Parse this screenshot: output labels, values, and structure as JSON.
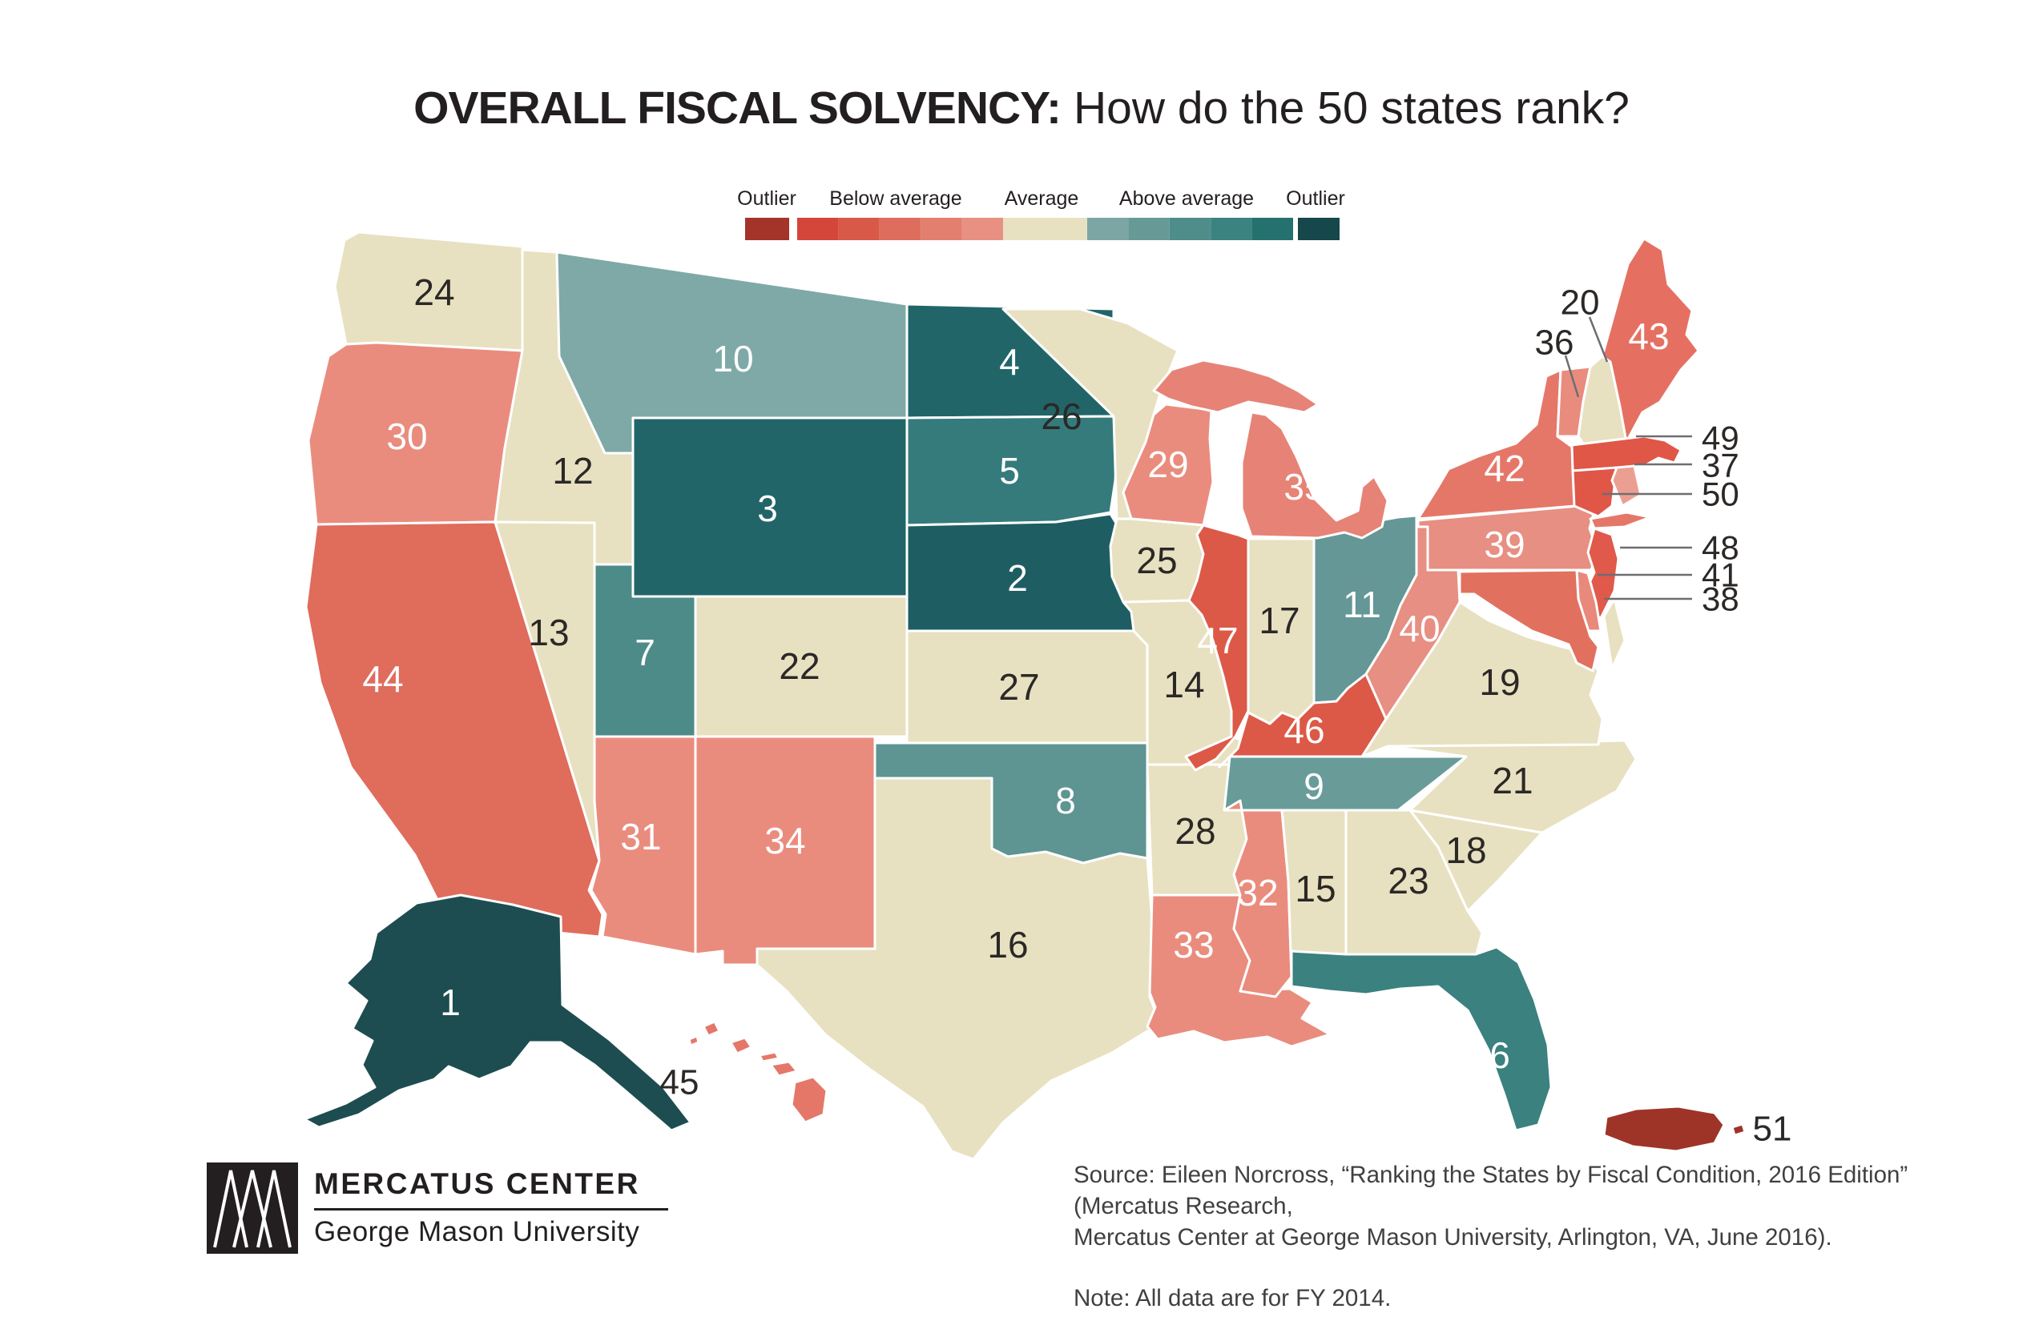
{
  "title": {
    "emphasis": "OVERALL FISCAL SOLVENCY:",
    "rest": "How do the 50 states rank?"
  },
  "legend": {
    "labels": [
      "Outlier",
      "Below average",
      "Average",
      "Above average",
      "Outlier"
    ],
    "outlier_low_color": "#a43429",
    "below_average_colors": [
      "#d5463a",
      "#d95948",
      "#de6d5d",
      "#e27f6f",
      "#e89182"
    ],
    "average_color": "#e7e1c1",
    "above_average_colors": [
      "#7ca6a3",
      "#679a97",
      "#4e8d8a",
      "#3b8380",
      "#257170"
    ],
    "outlier_high_color": "#16474b"
  },
  "map": {
    "states": [
      {
        "abbr": "AK",
        "name": "Alaska",
        "rank": 1,
        "fill": "#1d4d50",
        "label_color": "#ffffff"
      },
      {
        "abbr": "NE",
        "name": "Nebraska",
        "rank": 2,
        "fill": "#1e5e62",
        "label_color": "#ffffff"
      },
      {
        "abbr": "WY",
        "name": "Wyoming",
        "rank": 3,
        "fill": "#216569",
        "label_color": "#ffffff"
      },
      {
        "abbr": "ND",
        "name": "North Dakota",
        "rank": 4,
        "fill": "#216569",
        "label_color": "#ffffff"
      },
      {
        "abbr": "SD",
        "name": "South Dakota",
        "rank": 5,
        "fill": "#357b7c",
        "label_color": "#ffffff"
      },
      {
        "abbr": "FL",
        "name": "Florida",
        "rank": 6,
        "fill": "#3a817f",
        "label_color": "#ffffff"
      },
      {
        "abbr": "UT",
        "name": "Utah",
        "rank": 7,
        "fill": "#4d8b89",
        "label_color": "#ffffff"
      },
      {
        "abbr": "OK",
        "name": "Oklahoma",
        "rank": 8,
        "fill": "#5e9492",
        "label_color": "#ffffff"
      },
      {
        "abbr": "TN",
        "name": "Tennessee",
        "rank": 9,
        "fill": "#699c99",
        "label_color": "#ffffff"
      },
      {
        "abbr": "MT",
        "name": "Montana",
        "rank": 10,
        "fill": "#7ea9a7",
        "label_color": "#ffffff"
      },
      {
        "abbr": "OH",
        "name": "Ohio",
        "rank": 11,
        "fill": "#649795",
        "label_color": "#ffffff"
      },
      {
        "abbr": "ID",
        "name": "Idaho",
        "rank": 12,
        "fill": "#e7e1c1",
        "label_color": "#2b2826"
      },
      {
        "abbr": "NV",
        "name": "Nevada",
        "rank": 13,
        "fill": "#e7e1c1",
        "label_color": "#2b2826"
      },
      {
        "abbr": "MO",
        "name": "Missouri",
        "rank": 14,
        "fill": "#e7e1c1",
        "label_color": "#2b2826"
      },
      {
        "abbr": "AL",
        "name": "Alabama",
        "rank": 15,
        "fill": "#e7e1c1",
        "label_color": "#2b2826"
      },
      {
        "abbr": "TX",
        "name": "Texas",
        "rank": 16,
        "fill": "#e7e1c1",
        "label_color": "#2b2826"
      },
      {
        "abbr": "IN",
        "name": "Indiana",
        "rank": 17,
        "fill": "#e7e1c1",
        "label_color": "#2b2826"
      },
      {
        "abbr": "SC",
        "name": "South Carolina",
        "rank": 18,
        "fill": "#e7e1c1",
        "label_color": "#2b2826"
      },
      {
        "abbr": "VA",
        "name": "Virginia",
        "rank": 19,
        "fill": "#e7e1c1",
        "label_color": "#2b2826"
      },
      {
        "abbr": "NH",
        "name": "New Hampshire",
        "rank": 20,
        "fill": "#e7e1c1",
        "label_color": "#2b2826"
      },
      {
        "abbr": "NC",
        "name": "North Carolina",
        "rank": 21,
        "fill": "#e7e1c1",
        "label_color": "#2b2826"
      },
      {
        "abbr": "CO",
        "name": "Colorado",
        "rank": 22,
        "fill": "#e7e1c1",
        "label_color": "#2b2826"
      },
      {
        "abbr": "GA",
        "name": "Georgia",
        "rank": 23,
        "fill": "#e7e1c1",
        "label_color": "#2b2826"
      },
      {
        "abbr": "WA",
        "name": "Washington",
        "rank": 24,
        "fill": "#e7e1c1",
        "label_color": "#2b2826"
      },
      {
        "abbr": "IA",
        "name": "Iowa",
        "rank": 25,
        "fill": "#e7e1c1",
        "label_color": "#2b2826"
      },
      {
        "abbr": "MN",
        "name": "Minnesota",
        "rank": 26,
        "fill": "#e7e1c1",
        "label_color": "#2b2826"
      },
      {
        "abbr": "KS",
        "name": "Kansas",
        "rank": 27,
        "fill": "#e7e1c1",
        "label_color": "#2b2826"
      },
      {
        "abbr": "AR",
        "name": "Arkansas",
        "rank": 28,
        "fill": "#e7e1c1",
        "label_color": "#2b2826"
      },
      {
        "abbr": "WI",
        "name": "Wisconsin",
        "rank": 29,
        "fill": "#e98c7e",
        "label_color": "#ffffff"
      },
      {
        "abbr": "OR",
        "name": "Oregon",
        "rank": 30,
        "fill": "#e98c7e",
        "label_color": "#ffffff"
      },
      {
        "abbr": "AZ",
        "name": "Arizona",
        "rank": 31,
        "fill": "#e98c7e",
        "label_color": "#ffffff"
      },
      {
        "abbr": "MS",
        "name": "Mississippi",
        "rank": 32,
        "fill": "#e98c7e",
        "label_color": "#ffffff"
      },
      {
        "abbr": "LA",
        "name": "Louisiana",
        "rank": 33,
        "fill": "#e98c7e",
        "label_color": "#ffffff"
      },
      {
        "abbr": "NM",
        "name": "New Mexico",
        "rank": 34,
        "fill": "#e98c7e",
        "label_color": "#ffffff"
      },
      {
        "abbr": "MI",
        "name": "Michigan",
        "rank": 35,
        "fill": "#e68376",
        "label_color": "#ffffff"
      },
      {
        "abbr": "VT",
        "name": "Vermont",
        "rank": 36,
        "fill": "#e98c7e",
        "label_color": "#2b2826"
      },
      {
        "abbr": "RI",
        "name": "Rhode Island",
        "rank": 37,
        "fill": "#eb9f92",
        "label_color": "#2b2826"
      },
      {
        "abbr": "DE",
        "name": "Delaware",
        "rank": 38,
        "fill": "#e8897c",
        "label_color": "#2b2826"
      },
      {
        "abbr": "PA",
        "name": "Pennsylvania",
        "rank": 39,
        "fill": "#e78f82",
        "label_color": "#ffffff"
      },
      {
        "abbr": "WV",
        "name": "West Virginia",
        "rank": 40,
        "fill": "#e78f82",
        "label_color": "#ffffff"
      },
      {
        "abbr": "MD",
        "name": "Maryland",
        "rank": 41,
        "fill": "#e2705f",
        "label_color": "#2b2826"
      },
      {
        "abbr": "NY",
        "name": "New York",
        "rank": 42,
        "fill": "#e57769",
        "label_color": "#ffffff"
      },
      {
        "abbr": "ME",
        "name": "Maine",
        "rank": 43,
        "fill": "#e57062",
        "label_color": "#ffffff"
      },
      {
        "abbr": "CA",
        "name": "California",
        "rank": 44,
        "fill": "#e06c5c",
        "label_color": "#ffffff"
      },
      {
        "abbr": "HI",
        "name": "Hawaii",
        "rank": 45,
        "fill": "#e57769",
        "label_color": "#2b2826"
      },
      {
        "abbr": "KY",
        "name": "Kentucky",
        "rank": 46,
        "fill": "#dc5947",
        "label_color": "#ffffff"
      },
      {
        "abbr": "IL",
        "name": "Illinois",
        "rank": 47,
        "fill": "#dc5947",
        "label_color": "#ffffff"
      },
      {
        "abbr": "NJ",
        "name": "New Jersey",
        "rank": 48,
        "fill": "#e0594a",
        "label_color": "#2b2826"
      },
      {
        "abbr": "MA",
        "name": "Massachusetts",
        "rank": 49,
        "fill": "#e05647",
        "label_color": "#2b2826"
      },
      {
        "abbr": "CT",
        "name": "Connecticut",
        "rank": 50,
        "fill": "#e05647",
        "label_color": "#2b2826"
      },
      {
        "abbr": "PR",
        "name": "Puerto Rico",
        "rank": 51,
        "fill": "#9e3428",
        "label_color": "#2b2826"
      }
    ]
  },
  "footer": {
    "logo_title": "MERCATUS CENTER",
    "logo_subtitle": "George Mason University",
    "source_line1": "Source: Eileen Norcross, “Ranking the States by Fiscal Condition, 2016 Edition” (Mercatus Research,",
    "source_line2": "Mercatus Center at George Mason University, Arlington, VA, June 2016).",
    "note": "Note: All data are for FY 2014."
  }
}
